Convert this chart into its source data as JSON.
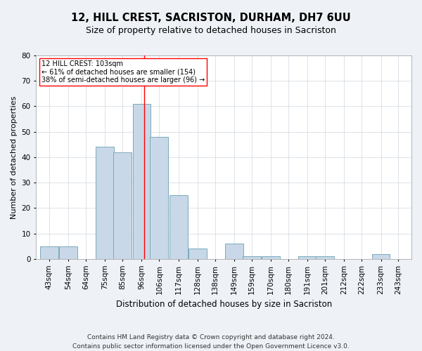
{
  "title": "12, HILL CREST, SACRISTON, DURHAM, DH7 6UU",
  "subtitle": "Size of property relative to detached houses in Sacriston",
  "xlabel": "Distribution of detached houses by size in Sacriston",
  "ylabel": "Number of detached properties",
  "bar_color": "#c8d8e8",
  "bar_edgecolor": "#7aaabb",
  "bar_linewidth": 0.7,
  "vline_x": 103,
  "vline_color": "red",
  "vline_linewidth": 1.0,
  "annotation_text": "12 HILL CREST: 103sqm\n← 61% of detached houses are smaller (154)\n38% of semi-detached houses are larger (96) →",
  "annotation_boxcolor": "white",
  "annotation_edgecolor": "red",
  "bins_left": [
    43,
    54,
    64,
    75,
    85,
    96,
    106,
    117,
    128,
    138,
    149,
    159,
    170,
    180,
    191,
    201,
    212,
    222,
    233,
    243
  ],
  "bin_width": 11,
  "counts": [
    5,
    5,
    0,
    44,
    42,
    61,
    48,
    25,
    4,
    0,
    6,
    1,
    1,
    0,
    1,
    1,
    0,
    0,
    2,
    0
  ],
  "ylim": [
    0,
    80
  ],
  "yticks": [
    0,
    10,
    20,
    30,
    40,
    50,
    60,
    70,
    80
  ],
  "grid_color": "#d0d8e0",
  "grid_linewidth": 0.5,
  "footnote": "Contains HM Land Registry data © Crown copyright and database right 2024.\nContains public sector information licensed under the Open Government Licence v3.0.",
  "bg_color": "#eef2f7",
  "plot_bg_color": "white",
  "title_fontsize": 10.5,
  "subtitle_fontsize": 9,
  "xlabel_fontsize": 8.5,
  "ylabel_fontsize": 8,
  "tick_fontsize": 7.5,
  "footnote_fontsize": 6.5
}
